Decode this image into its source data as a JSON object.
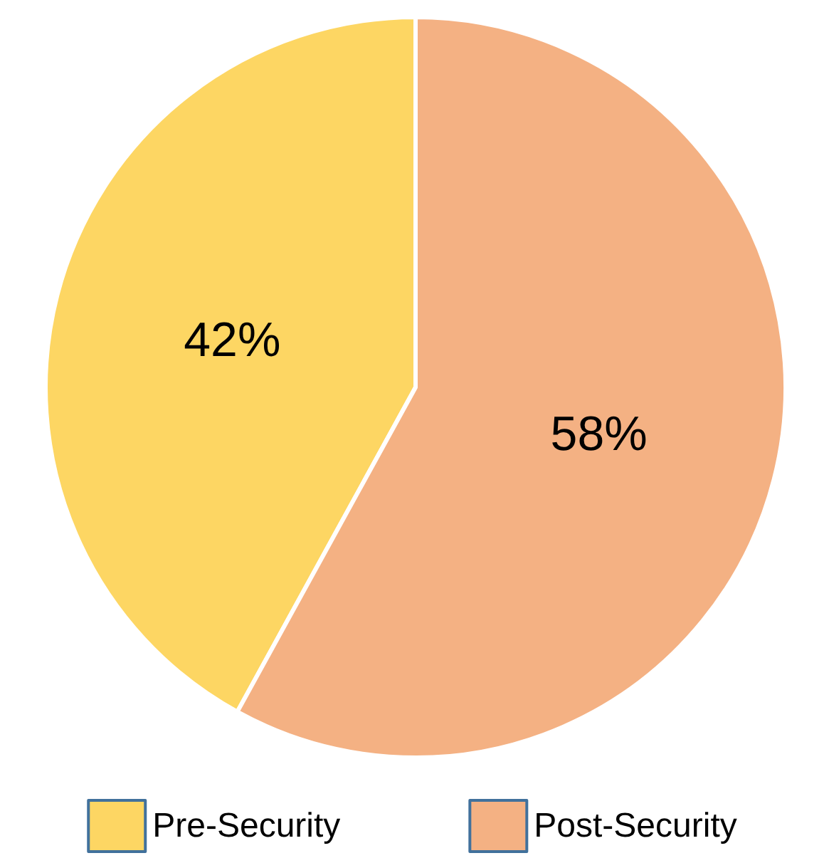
{
  "chart_data": {
    "type": "pie",
    "categories": [
      "Pre-Security",
      "Post-Security"
    ],
    "values": [
      42,
      58
    ],
    "colors": [
      "#fdd663",
      "#f4b183"
    ],
    "value_labels": [
      "42%",
      "58%"
    ],
    "legend": "bottom"
  }
}
